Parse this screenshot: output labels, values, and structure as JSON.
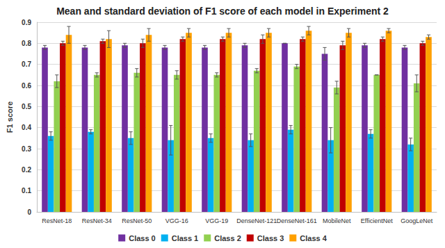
{
  "chart_data": {
    "type": "bar",
    "title": "Mean and standard deviation of F1 score of each model in Experiment 2",
    "y_label": "F1 score",
    "categories": [
      "ResNet-18",
      "ResNet-34",
      "ResNet-50",
      "VGG-16",
      "VGG-19",
      "DenseNet-121",
      "DenseNet-161",
      "MobileNet",
      "EfficientNet",
      "GoogLeNet"
    ],
    "series": [
      {
        "name": "Class 0",
        "color": "#7030a0",
        "values": [
          0.78,
          0.78,
          0.79,
          0.78,
          0.78,
          0.79,
          0.8,
          0.75,
          0.79,
          0.78
        ],
        "errors": [
          0.01,
          0.01,
          0.01,
          0.01,
          0.01,
          0.01,
          0.0,
          0.03,
          0.01,
          0.01
        ]
      },
      {
        "name": "Class 1",
        "color": "#00b0f0",
        "values": [
          0.36,
          0.38,
          0.35,
          0.34,
          0.35,
          0.34,
          0.39,
          0.34,
          0.37,
          0.32
        ],
        "errors": [
          0.02,
          0.01,
          0.03,
          0.07,
          0.02,
          0.03,
          0.02,
          0.06,
          0.02,
          0.03
        ]
      },
      {
        "name": "Class 2",
        "color": "#92d050",
        "values": [
          0.62,
          0.65,
          0.66,
          0.65,
          0.65,
          0.67,
          0.69,
          0.59,
          0.65,
          0.61
        ],
        "errors": [
          0.03,
          0.01,
          0.02,
          0.02,
          0.01,
          0.01,
          0.01,
          0.03,
          0.0,
          0.04
        ]
      },
      {
        "name": "Class 3",
        "color": "#c00000",
        "values": [
          0.8,
          0.81,
          0.8,
          0.82,
          0.82,
          0.82,
          0.82,
          0.79,
          0.82,
          0.8
        ],
        "errors": [
          0.01,
          0.01,
          0.02,
          0.01,
          0.01,
          0.02,
          0.01,
          0.02,
          0.01,
          0.01
        ]
      },
      {
        "name": "Class 4",
        "color": "#ffa000",
        "values": [
          0.84,
          0.82,
          0.84,
          0.85,
          0.85,
          0.85,
          0.86,
          0.85,
          0.86,
          0.83
        ],
        "errors": [
          0.04,
          0.04,
          0.03,
          0.02,
          0.02,
          0.02,
          0.02,
          0.02,
          0.01,
          0.01
        ]
      }
    ],
    "ylim": [
      0,
      0.9
    ],
    "yticks": [
      0,
      0.1,
      0.2,
      0.3,
      0.4,
      0.5,
      0.6,
      0.7,
      0.8,
      0.9
    ],
    "grid": true,
    "legend": "bottom"
  }
}
